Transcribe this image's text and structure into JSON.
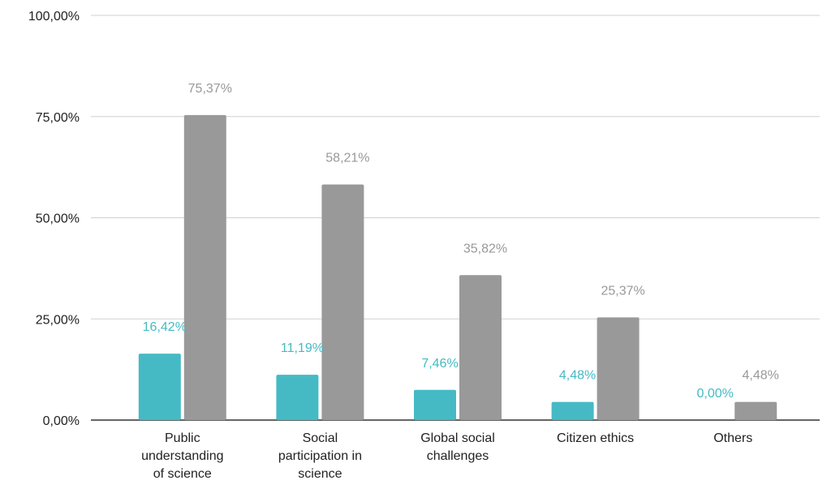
{
  "chart_data": {
    "type": "bar",
    "title": "",
    "xlabel": "",
    "ylabel": "",
    "categories": [
      [
        "Public",
        "understanding",
        "of science"
      ],
      [
        "Social",
        "participation in",
        "science"
      ],
      [
        "Global social",
        "challenges"
      ],
      [
        "Citizen ethics"
      ],
      [
        "Others"
      ]
    ],
    "series": [
      {
        "color": "#45BAC5",
        "values": [
          16.42,
          11.19,
          7.46,
          4.48,
          0.0
        ],
        "labels": [
          "16,42%",
          "11,19%",
          "7,46%",
          "4,48%",
          "0,00%"
        ]
      },
      {
        "color": "#999999",
        "values": [
          75.37,
          58.21,
          35.82,
          25.37,
          4.48
        ],
        "labels": [
          "75,37%",
          "58,21%",
          "35,82%",
          "25,37%",
          "4,48%"
        ]
      }
    ],
    "ylim": [
      0,
      100
    ],
    "yticks": [
      0,
      25,
      50,
      75,
      100
    ],
    "ytick_labels": [
      "0,00%",
      "25,00%",
      "50,00%",
      "75,00%",
      "100,00%"
    ],
    "grid": true,
    "legend": "none"
  }
}
